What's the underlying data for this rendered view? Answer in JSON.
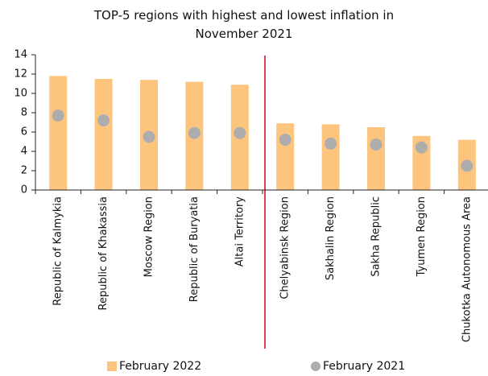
{
  "chart_data": {
    "type": "bar",
    "title": "TOP-5 regions with highest and lowest inflation in November 2021",
    "categories": [
      "Republic of Kalmykia",
      "Republic of Khakassia",
      "Moscow Region",
      "Republic of Buryatia",
      "Altai Territory",
      "Chelyabinsk Region",
      "Sakhalin Region",
      "Sakha Republic",
      "Tyumen Region",
      "Chukotka Autonomous Area"
    ],
    "series": [
      {
        "name": "February 2022",
        "type": "bar",
        "color": "#fdc47d",
        "values": [
          11.8,
          11.5,
          11.4,
          11.2,
          10.9,
          6.9,
          6.8,
          6.5,
          5.6,
          5.2
        ]
      },
      {
        "name": "February 2021",
        "type": "scatter",
        "color": "#adadad",
        "values": [
          7.7,
          7.2,
          5.5,
          5.9,
          5.9,
          5.2,
          4.8,
          4.7,
          4.4,
          2.5
        ]
      }
    ],
    "ylim": [
      0,
      14
    ],
    "yticks": [
      0,
      2,
      4,
      6,
      8,
      10,
      12,
      14
    ],
    "grid": false,
    "legend": "bottom"
  }
}
